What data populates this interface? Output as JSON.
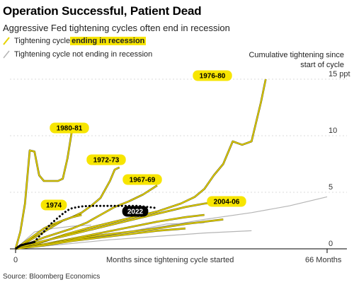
{
  "header": {
    "title": "Operation Successful, Patient Dead",
    "subtitle": "Aggressive Fed tightening cycles often end in recession"
  },
  "legend": {
    "recession_prefix": "Tightening cycle ",
    "recession_highlight": "ending in recession",
    "no_recession": "Tightening cycle not ending in recession"
  },
  "source": "Source: Bloomberg Economics",
  "colors": {
    "recession": "#e6d300",
    "no_recession": "#b5b5b5",
    "current": "#000000",
    "label_bg": "#f7e500"
  },
  "chart_data": {
    "type": "line",
    "title": "Operation Successful, Patient Dead",
    "ylabel": "Cumulative tightening since start of cycle",
    "xlabel": "Months since tightening cycle started",
    "x_ticks": [
      "0",
      "66 Months"
    ],
    "y_ticks": [
      "15 ppt",
      "10",
      "5",
      "0"
    ],
    "xlim": [
      0,
      66
    ],
    "ylim": [
      -0.3,
      15.5
    ],
    "grid": true,
    "series": [
      {
        "name": "1980-81",
        "group": "recession",
        "x": [
          0,
          1,
          2,
          3,
          4,
          5,
          6,
          7,
          8,
          9,
          10,
          11,
          12,
          13
        ],
        "y": [
          0,
          1.5,
          4,
          8.7,
          8.6,
          6.5,
          6,
          6,
          6,
          6,
          6.2,
          8,
          10.6,
          10.6
        ]
      },
      {
        "name": "1972-73",
        "group": "recession",
        "x": [
          0,
          2,
          4,
          6,
          8,
          10,
          12,
          14,
          16,
          18,
          20,
          21,
          22
        ],
        "y": [
          0,
          0.5,
          1,
          1.5,
          2,
          2.5,
          2.8,
          3.2,
          3.8,
          4.5,
          6,
          7,
          7.2
        ]
      },
      {
        "name": "1967-69",
        "group": "recession",
        "x": [
          0,
          3,
          6,
          9,
          12,
          15,
          18,
          21,
          24,
          27,
          30
        ],
        "y": [
          0,
          0.5,
          1,
          1.4,
          1.8,
          2.3,
          3,
          3.7,
          4.2,
          4.8,
          5.6
        ]
      },
      {
        "name": "1976-80",
        "group": "recession",
        "x": [
          0,
          5,
          10,
          15,
          20,
          25,
          30,
          35,
          38,
          40,
          42,
          44,
          46,
          48,
          50,
          52,
          53
        ],
        "y": [
          0,
          0.5,
          1.2,
          1.8,
          2.3,
          2.8,
          3.3,
          4,
          4.6,
          5.3,
          6.5,
          7.5,
          9.5,
          9.2,
          9.5,
          13,
          15
        ]
      },
      {
        "name": "1974",
        "group": "recession",
        "x": [
          0,
          2,
          4,
          6,
          8,
          10,
          12,
          14
        ],
        "y": [
          0,
          0.6,
          1.2,
          1.8,
          2.2,
          2.5,
          2.8,
          3
        ]
      },
      {
        "name": "2004-06",
        "group": "recession",
        "x": [
          0,
          4,
          8,
          12,
          16,
          20,
          24,
          28,
          32,
          36,
          40,
          44,
          48
        ],
        "y": [
          0,
          0.5,
          0.9,
          1.3,
          1.7,
          2.1,
          2.5,
          2.9,
          3.3,
          3.7,
          4.0,
          4.2,
          4.3
        ]
      },
      {
        "name": "",
        "group": "recession",
        "x": [
          0,
          6,
          12,
          18,
          24,
          30,
          36,
          40
        ],
        "y": [
          0,
          0.4,
          0.9,
          1.4,
          1.9,
          2.4,
          2.8,
          3
        ]
      },
      {
        "name": "",
        "group": "recession",
        "x": [
          0,
          6,
          12,
          18,
          24,
          30,
          36,
          44
        ],
        "y": [
          0,
          0.4,
          0.8,
          1.2,
          1.5,
          1.8,
          2.2,
          2.6
        ]
      },
      {
        "name": "",
        "group": "recession",
        "x": [
          0,
          6,
          12,
          18,
          24,
          30,
          36
        ],
        "y": [
          0,
          0.3,
          0.7,
          1,
          1.3,
          1.6,
          1.8
        ]
      },
      {
        "name": "",
        "group": "no_recession",
        "x": [
          0,
          10,
          20,
          30,
          40,
          50,
          58,
          66
        ],
        "y": [
          0,
          0.6,
          1.2,
          1.9,
          2.6,
          3.2,
          3.8,
          4.6
        ]
      },
      {
        "name": "",
        "group": "no_recession",
        "x": [
          0,
          8,
          16,
          24,
          32,
          40
        ],
        "y": [
          0,
          0.5,
          1,
          1.5,
          2.2,
          2.3
        ]
      },
      {
        "name": "",
        "group": "no_recession",
        "x": [
          0,
          4,
          8,
          12,
          16
        ],
        "y": [
          0,
          1.5,
          1.8,
          2,
          2.1
        ]
      },
      {
        "name": "",
        "group": "no_recession",
        "x": [
          0,
          10,
          20,
          30,
          40,
          50
        ],
        "y": [
          0,
          0.4,
          0.8,
          1.1,
          1.4,
          1.6
        ]
      },
      {
        "name": "2022",
        "group": "current",
        "x": [
          0,
          1,
          2,
          3,
          4,
          5,
          6,
          7,
          8,
          9,
          10,
          11,
          12,
          14,
          16,
          18,
          20,
          22,
          24,
          26,
          28,
          30
        ],
        "y": [
          0,
          0.3,
          0.4,
          0.5,
          0.6,
          1.1,
          1.5,
          2,
          2.4,
          2.75,
          3.1,
          3.4,
          3.6,
          3.75,
          3.8,
          3.8,
          3.8,
          3.8,
          3.8,
          3.8,
          3.7,
          3.6
        ],
        "solid_until": 4
      }
    ]
  }
}
